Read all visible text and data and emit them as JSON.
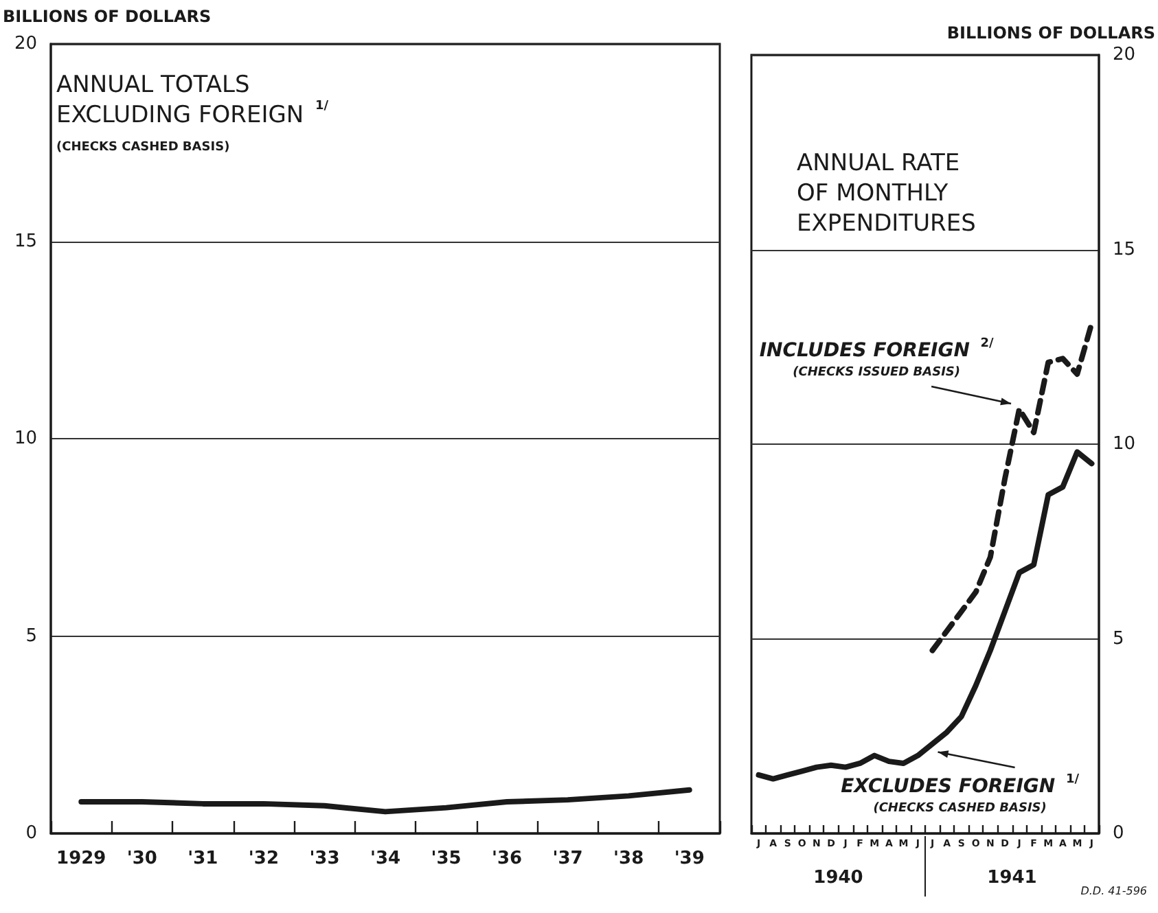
{
  "chart_data": [
    {
      "type": "line",
      "title": "ANNUAL TOTALS\nEXCLUDING FOREIGN $^{1/}$",
      "subtitle": "(CHECKS CASHED BASIS)",
      "ylabel": "BILLIONS OF DOLLARS",
      "categories": [
        "1929",
        "'30",
        "'31",
        "'32",
        "'33",
        "'34",
        "'35",
        "'36",
        "'37",
        "'38",
        "'39"
      ],
      "series": [
        {
          "color": "#1a1a1a",
          "values": [
            0.8,
            0.8,
            0.75,
            0.75,
            0.7,
            0.55,
            0.65,
            0.8,
            0.85,
            0.95,
            1.1
          ]
        }
      ],
      "ylim": [
        0,
        20
      ],
      "yticks": [
        0,
        5,
        10,
        15,
        20
      ],
      "grid": "y",
      "marker": "none",
      "line_style": "solid"
    },
    {
      "type": "line",
      "title": "ANNUAL RATE\nOF MONTHLY\nEXPENDITURES",
      "ylabel": "BILLIONS OF DOLLARS",
      "categories": [
        "J",
        "A",
        "S",
        "O",
        "N",
        "D",
        "J",
        "F",
        "M",
        "A",
        "M",
        "J",
        "J",
        "A",
        "S",
        "O",
        "N",
        "D",
        "J",
        "F",
        "M",
        "A",
        "M",
        "J"
      ],
      "series": [
        {
          "name": "INCLUDES FOREIGN $^{2/}$",
          "color": "#1a1a1a",
          "line_style": "dashed",
          "values": [
            null,
            null,
            null,
            null,
            null,
            null,
            null,
            null,
            null,
            null,
            null,
            null,
            4.7,
            5.2,
            5.7,
            6.2,
            7.1,
            9.1,
            10.9,
            10.3,
            12.1,
            12.2,
            11.8,
            13.1
          ]
        },
        {
          "name": "EXCLUDES FOREIGN $^{1/}$",
          "color": "#1a1a1a",
          "line_style": "solid",
          "values": [
            1.5,
            1.4,
            1.5,
            1.6,
            1.7,
            1.75,
            1.7,
            1.8,
            2.0,
            1.85,
            1.8,
            2.0,
            2.3,
            2.6,
            3.0,
            3.8,
            4.7,
            5.7,
            6.7,
            6.9,
            8.7,
            8.9,
            9.8,
            9.5
          ]
        }
      ],
      "annotations": [
        "(CHECKS ISSUED BASIS)",
        "(CHECKS CASHED BASIS)",
        "1940",
        "1941",
        "D.D. 41-596"
      ],
      "ylim": [
        0,
        20
      ],
      "yticks": [
        0,
        5,
        10,
        15,
        20
      ],
      "grid": "y",
      "marker": "none"
    }
  ]
}
